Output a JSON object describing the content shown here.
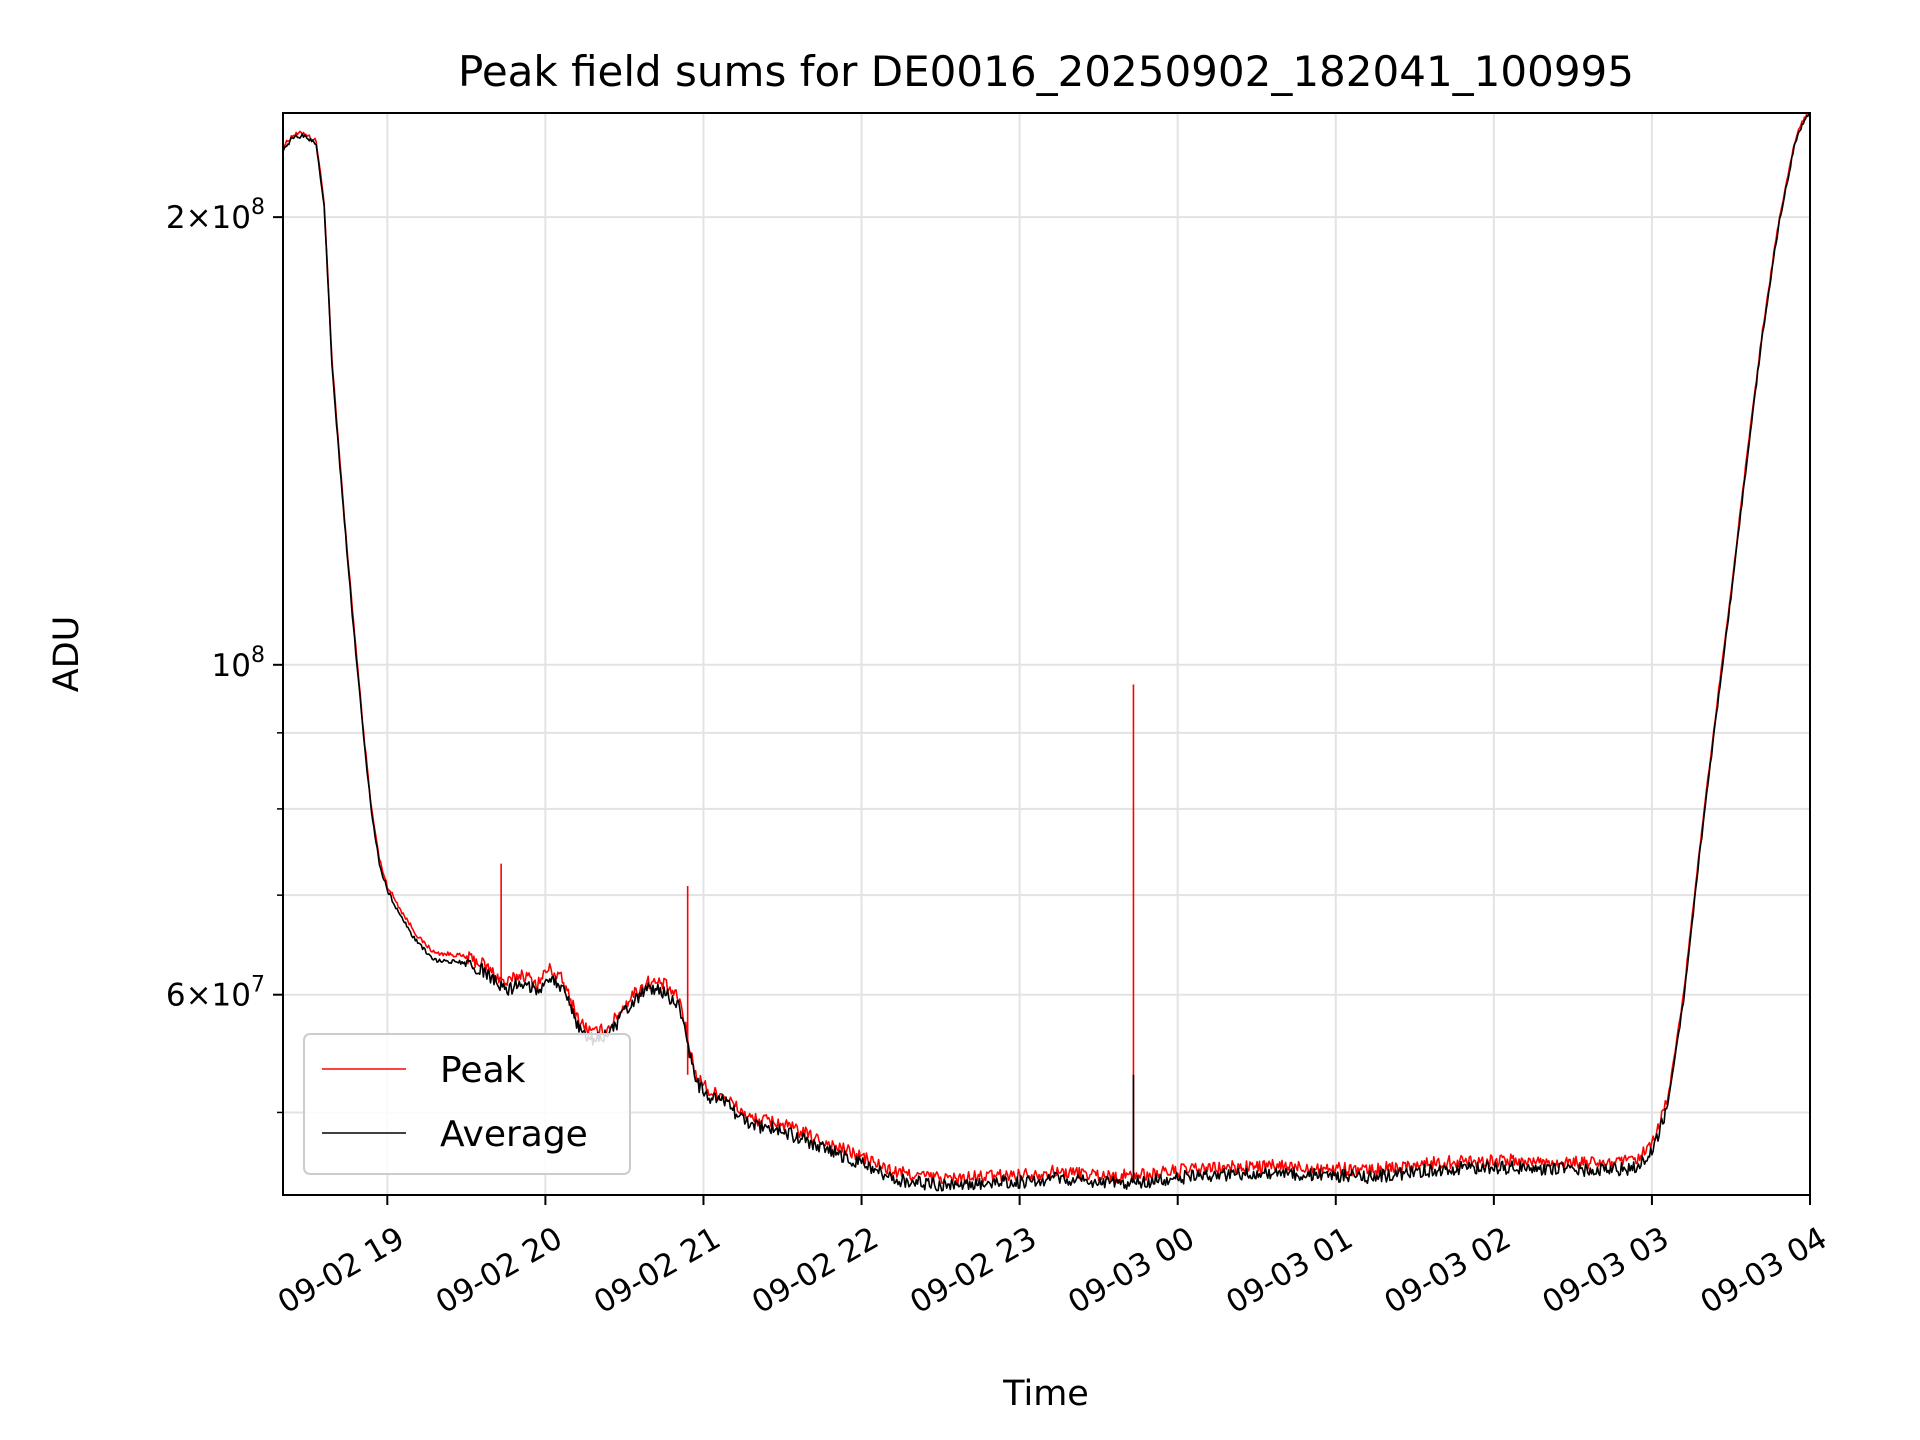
{
  "chart_data": {
    "type": "line",
    "title": "Peak field sums for DE0016_20250902_182041_100995",
    "xlabel": "Time",
    "ylabel": "ADU",
    "yscale": "log",
    "ylim": [
      44000000,
      235000000
    ],
    "xlim_hours_since_0902_0000": [
      18.34,
      28.0
    ],
    "x_ticks": [
      {
        "hour": 19,
        "label": "09-02 19"
      },
      {
        "hour": 20,
        "label": "09-02 20"
      },
      {
        "hour": 21,
        "label": "09-02 21"
      },
      {
        "hour": 22,
        "label": "09-02 22"
      },
      {
        "hour": 23,
        "label": "09-02 23"
      },
      {
        "hour": 24,
        "label": "09-03 00"
      },
      {
        "hour": 25,
        "label": "09-03 01"
      },
      {
        "hour": 26,
        "label": "09-03 02"
      },
      {
        "hour": 27,
        "label": "09-03 03"
      },
      {
        "hour": 28,
        "label": "09-03 04"
      }
    ],
    "y_major_ticks": [
      {
        "value": 60000000,
        "base": "6",
        "exp": "7"
      },
      {
        "value": 100000000,
        "base": "10",
        "exp": "8"
      },
      {
        "value": 200000000,
        "base": "2",
        "exp": "8"
      }
    ],
    "y_minor_ticks": [
      50000000,
      70000000,
      80000000,
      90000000
    ],
    "legend_position": "lower-left",
    "series": [
      {
        "name": "Peak",
        "color": "#ff0000",
        "x": [
          18.34,
          18.4,
          18.47,
          18.55,
          18.6,
          18.65,
          18.7,
          18.75,
          18.8,
          18.85,
          18.9,
          18.95,
          19.0,
          19.1,
          19.2,
          19.3,
          19.45,
          19.6,
          19.75,
          19.85,
          19.95,
          20.02,
          20.1,
          20.22,
          20.3,
          20.4,
          20.55,
          20.65,
          20.75,
          20.85,
          20.95,
          21.05,
          21.12,
          21.2,
          21.3,
          21.45,
          21.6,
          21.8,
          22.0,
          22.2,
          22.4,
          22.6,
          22.8,
          23.0,
          23.2,
          23.4,
          23.6,
          23.8,
          24.0,
          24.3,
          24.6,
          24.9,
          25.2,
          25.5,
          25.8,
          26.1,
          26.4,
          26.7,
          26.9,
          27.0,
          27.1,
          27.2,
          27.3,
          27.4,
          27.5,
          27.6,
          27.7,
          27.8,
          27.9,
          27.95,
          28.0
        ],
        "values": [
          223000000,
          227000000,
          228000000,
          225000000,
          205000000,
          160000000,
          137000000,
          118000000,
          103000000,
          90000000,
          80000000,
          74000000,
          71000000,
          68000000,
          65500000,
          64000000,
          63800000,
          63000000,
          61000000,
          62000000,
          61000000,
          62500000,
          61500000,
          57500000,
          56500000,
          57000000,
          60000000,
          61200000,
          61000000,
          59500000,
          53000000,
          51500000,
          51500000,
          50500000,
          49500000,
          49300000,
          48600000,
          47600000,
          46700000,
          45600000,
          45300000,
          45100000,
          45300000,
          45400000,
          45600000,
          45500000,
          45300000,
          45400000,
          45700000,
          45900000,
          46000000,
          45900000,
          45700000,
          46100000,
          46400000,
          46400000,
          46300000,
          46200000,
          46400000,
          47500000,
          51000000,
          60000000,
          75000000,
          92000000,
          112000000,
          138000000,
          168000000,
          198000000,
          224000000,
          232000000,
          236000000
        ],
        "spikes": [
          {
            "x": 19.72,
            "value": 73500000
          },
          {
            "x": 20.9,
            "value": 71000000
          },
          {
            "x": 23.72,
            "value": 97000000
          }
        ]
      },
      {
        "name": "Average",
        "color": "#000000",
        "x": [
          18.34,
          18.4,
          18.47,
          18.55,
          18.6,
          18.65,
          18.7,
          18.75,
          18.8,
          18.85,
          18.9,
          18.95,
          19.0,
          19.1,
          19.2,
          19.3,
          19.45,
          19.6,
          19.75,
          19.85,
          19.95,
          20.02,
          20.1,
          20.22,
          20.3,
          20.4,
          20.55,
          20.65,
          20.75,
          20.85,
          20.95,
          21.05,
          21.12,
          21.2,
          21.3,
          21.45,
          21.6,
          21.8,
          22.0,
          22.2,
          22.4,
          22.6,
          22.8,
          23.0,
          23.2,
          23.4,
          23.6,
          23.8,
          24.0,
          24.3,
          24.6,
          24.9,
          25.2,
          25.5,
          25.8,
          26.1,
          26.4,
          26.7,
          26.9,
          27.0,
          27.1,
          27.2,
          27.3,
          27.4,
          27.5,
          27.6,
          27.7,
          27.8,
          27.9,
          27.95,
          28.0
        ],
        "values": [
          222000000,
          226000000,
          227000000,
          224000000,
          204000000,
          159000000,
          136000000,
          117000000,
          102000000,
          89500000,
          79500000,
          73500000,
          70500000,
          67300000,
          64800000,
          63300000,
          63100000,
          62300000,
          60300000,
          61300000,
          60300000,
          61800000,
          60800000,
          56800000,
          55900000,
          56400000,
          59300000,
          60500000,
          60300000,
          58800000,
          52400000,
          51000000,
          51000000,
          50000000,
          49000000,
          48800000,
          48100000,
          47100000,
          46200000,
          45100000,
          44800000,
          44600000,
          44800000,
          44900000,
          45100000,
          45000000,
          44800000,
          44900000,
          45200000,
          45400000,
          45500000,
          45400000,
          45200000,
          45600000,
          45900000,
          45900000,
          45800000,
          45700000,
          45900000,
          47000000,
          50500000,
          59400000,
          74300000,
          91200000,
          111000000,
          137000000,
          167000000,
          197000000,
          223000000,
          231000000,
          235000000
        ],
        "spikes": [
          {
            "x": 23.72,
            "value": 53000000
          }
        ]
      }
    ]
  }
}
